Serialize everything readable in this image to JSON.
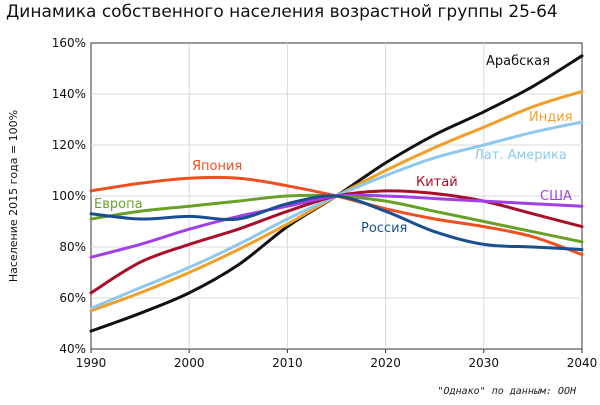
{
  "title": "Динамика собственного населения возрастной группы 25-64",
  "source": "\"Однако\" по данным: ООН",
  "chart_data": {
    "type": "line",
    "title": "Динамика собственного населения возрастной группы 25-64",
    "ylabel": "Население 2015 года = 100%",
    "xlabel": "",
    "xlim": [
      1990,
      2040
    ],
    "ylim": [
      40,
      160
    ],
    "x_ticks": [
      "1990",
      "2000",
      "2010",
      "2020",
      "2030",
      "2040"
    ],
    "y_ticks": [
      "40%",
      "60%",
      "80%",
      "100%",
      "120%",
      "140%",
      "160%"
    ],
    "grid": true,
    "x": [
      1990,
      1995,
      2000,
      2005,
      2010,
      2015,
      2020,
      2025,
      2030,
      2035,
      2040
    ],
    "series": [
      {
        "name": "Арабская",
        "color": "#111111",
        "values": [
          47,
          54,
          62,
          73,
          88,
          100,
          113,
          124,
          133,
          143,
          155
        ]
      },
      {
        "name": "Индия",
        "color": "#f0a028",
        "values": [
          55,
          62,
          70,
          79,
          89,
          100,
          110,
          119,
          127,
          135,
          141
        ]
      },
      {
        "name": "Лат. Америка",
        "color": "#8ec8ec",
        "values": [
          56,
          64,
          72,
          81,
          91,
          100,
          108,
          115,
          120,
          125,
          129
        ]
      },
      {
        "name": "Китай",
        "color": "#a8102a",
        "values": [
          62,
          74,
          81,
          87,
          94,
          100,
          102,
          101,
          98,
          93,
          88
        ]
      },
      {
        "name": "США",
        "color": "#a040e6",
        "values": [
          76,
          81,
          87,
          92,
          96,
          100,
          100,
          99,
          98,
          97,
          96
        ]
      },
      {
        "name": "Европа",
        "color": "#6aa028",
        "values": [
          91,
          94,
          96,
          98,
          100,
          100,
          98,
          94,
          90,
          86,
          82
        ]
      },
      {
        "name": "Япония",
        "color": "#f05020",
        "values": [
          102,
          105,
          107,
          107,
          104,
          100,
          95,
          91,
          88,
          84,
          77
        ]
      },
      {
        "name": "Россия",
        "color": "#184f8f",
        "values": [
          93,
          91,
          92,
          91,
          97,
          100,
          94,
          86,
          81,
          80,
          79
        ]
      }
    ]
  }
}
